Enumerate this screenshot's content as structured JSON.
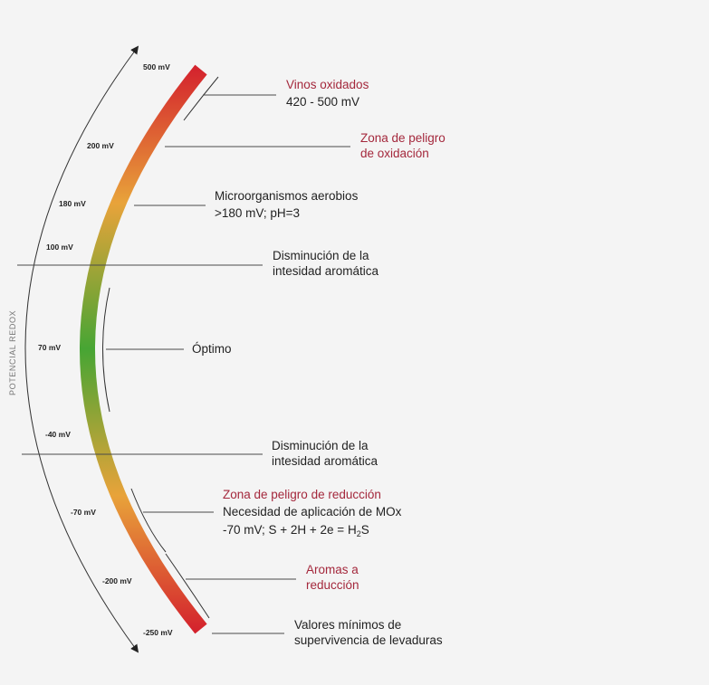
{
  "axis_title": "POTENCIAL REDOX",
  "mv_labels": [
    "500 mV",
    "200 mV",
    "180 mV",
    "100 mV",
    "70 mV",
    "-40 mV",
    "-70 mV",
    "-200 mV",
    "-250 mV"
  ],
  "gradient_colors": {
    "top": "#d4232d",
    "upper": "#e8a33a",
    "middle": "#47a534",
    "lower": "#e8a33a",
    "bottom": "#d4232d"
  },
  "annotations": {
    "vinos_oxidados": {
      "title": "Vinos oxidados",
      "detail": "420 - 500 mV"
    },
    "peligro_oxidacion": {
      "line1": "Zona de peligro",
      "line2": "de oxidación"
    },
    "aerobios": {
      "title": "Microorganismos aerobios",
      "detail": ">180 mV; pH=3"
    },
    "disminucion_superior": {
      "line1": "Disminución de la",
      "line2": "intesidad aromática"
    },
    "optimo": {
      "title": "Óptimo"
    },
    "disminucion_inferior": {
      "line1": "Disminución de la",
      "line2": "intesidad aromática"
    },
    "peligro_reduccion": {
      "title": "Zona de peligro de reducción",
      "line2": "Necesidad de aplicación de MOx",
      "formula_a": "-70 mV; S + 2H + 2e = H",
      "formula_sub": "2",
      "formula_b": "S"
    },
    "aromas_reduccion": {
      "line1": "Aromas a",
      "line2": "reducción"
    },
    "valores_minimos": {
      "line1": "Valores mínimos de",
      "line2": "supervivencia de levaduras"
    }
  }
}
